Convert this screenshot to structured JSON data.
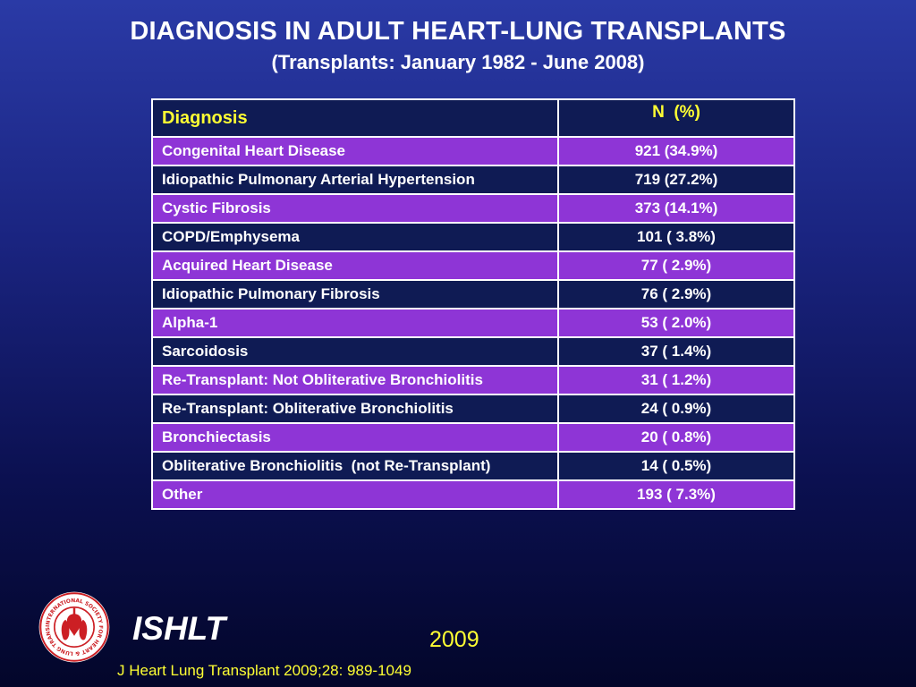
{
  "slide": {
    "title": "DIAGNOSIS IN ADULT HEART-LUNG TRANSPLANTS",
    "subtitle": "(Transplants: January 1982 - June 2008)"
  },
  "table": {
    "headers": [
      "Diagnosis",
      "N  (%)"
    ],
    "rows": [
      {
        "diagnosis": "Congenital Heart Disease",
        "n_pct": "921 (34.9%)"
      },
      {
        "diagnosis": "Idiopathic Pulmonary Arterial Hypertension",
        "n_pct": "719 (27.2%)"
      },
      {
        "diagnosis": "Cystic Fibrosis",
        "n_pct": "373 (14.1%)"
      },
      {
        "diagnosis": "COPD/Emphysema",
        "n_pct": "101 ( 3.8%)"
      },
      {
        "diagnosis": "Acquired Heart Disease",
        "n_pct": "77 ( 2.9%)"
      },
      {
        "diagnosis": "Idiopathic Pulmonary Fibrosis",
        "n_pct": "76 ( 2.9%)"
      },
      {
        "diagnosis": "Alpha-1",
        "n_pct": "53 ( 2.0%)"
      },
      {
        "diagnosis": "Sarcoidosis",
        "n_pct": "37 ( 1.4%)"
      },
      {
        "diagnosis": "Re-Transplant: Not Obliterative Bronchiolitis",
        "n_pct": "31 ( 1.2%)"
      },
      {
        "diagnosis": "Re-Transplant: Obliterative Bronchiolitis",
        "n_pct": "24 ( 0.9%)"
      },
      {
        "diagnosis": "Bronchiectasis",
        "n_pct": "20 ( 0.8%)"
      },
      {
        "diagnosis": "Obliterative Bronchiolitis  (not Re-Transplant)",
        "n_pct": "14 ( 0.5%)"
      },
      {
        "diagnosis": "Other",
        "n_pct": "193 ( 7.3%)"
      }
    ]
  },
  "footer": {
    "logo_text": "INTERNATIONAL SOCIETY FOR HEART & LUNG TRANSPLANTATION",
    "brand": "ISHLT",
    "year": "2009",
    "citation": "J Heart Lung Transplant 2009;28: 989-1049"
  },
  "colors": {
    "header_text": "#ffff33",
    "row_purple": "#8e35d6",
    "row_navy": "#0f1b54",
    "logo_red": "#cc1f24"
  }
}
